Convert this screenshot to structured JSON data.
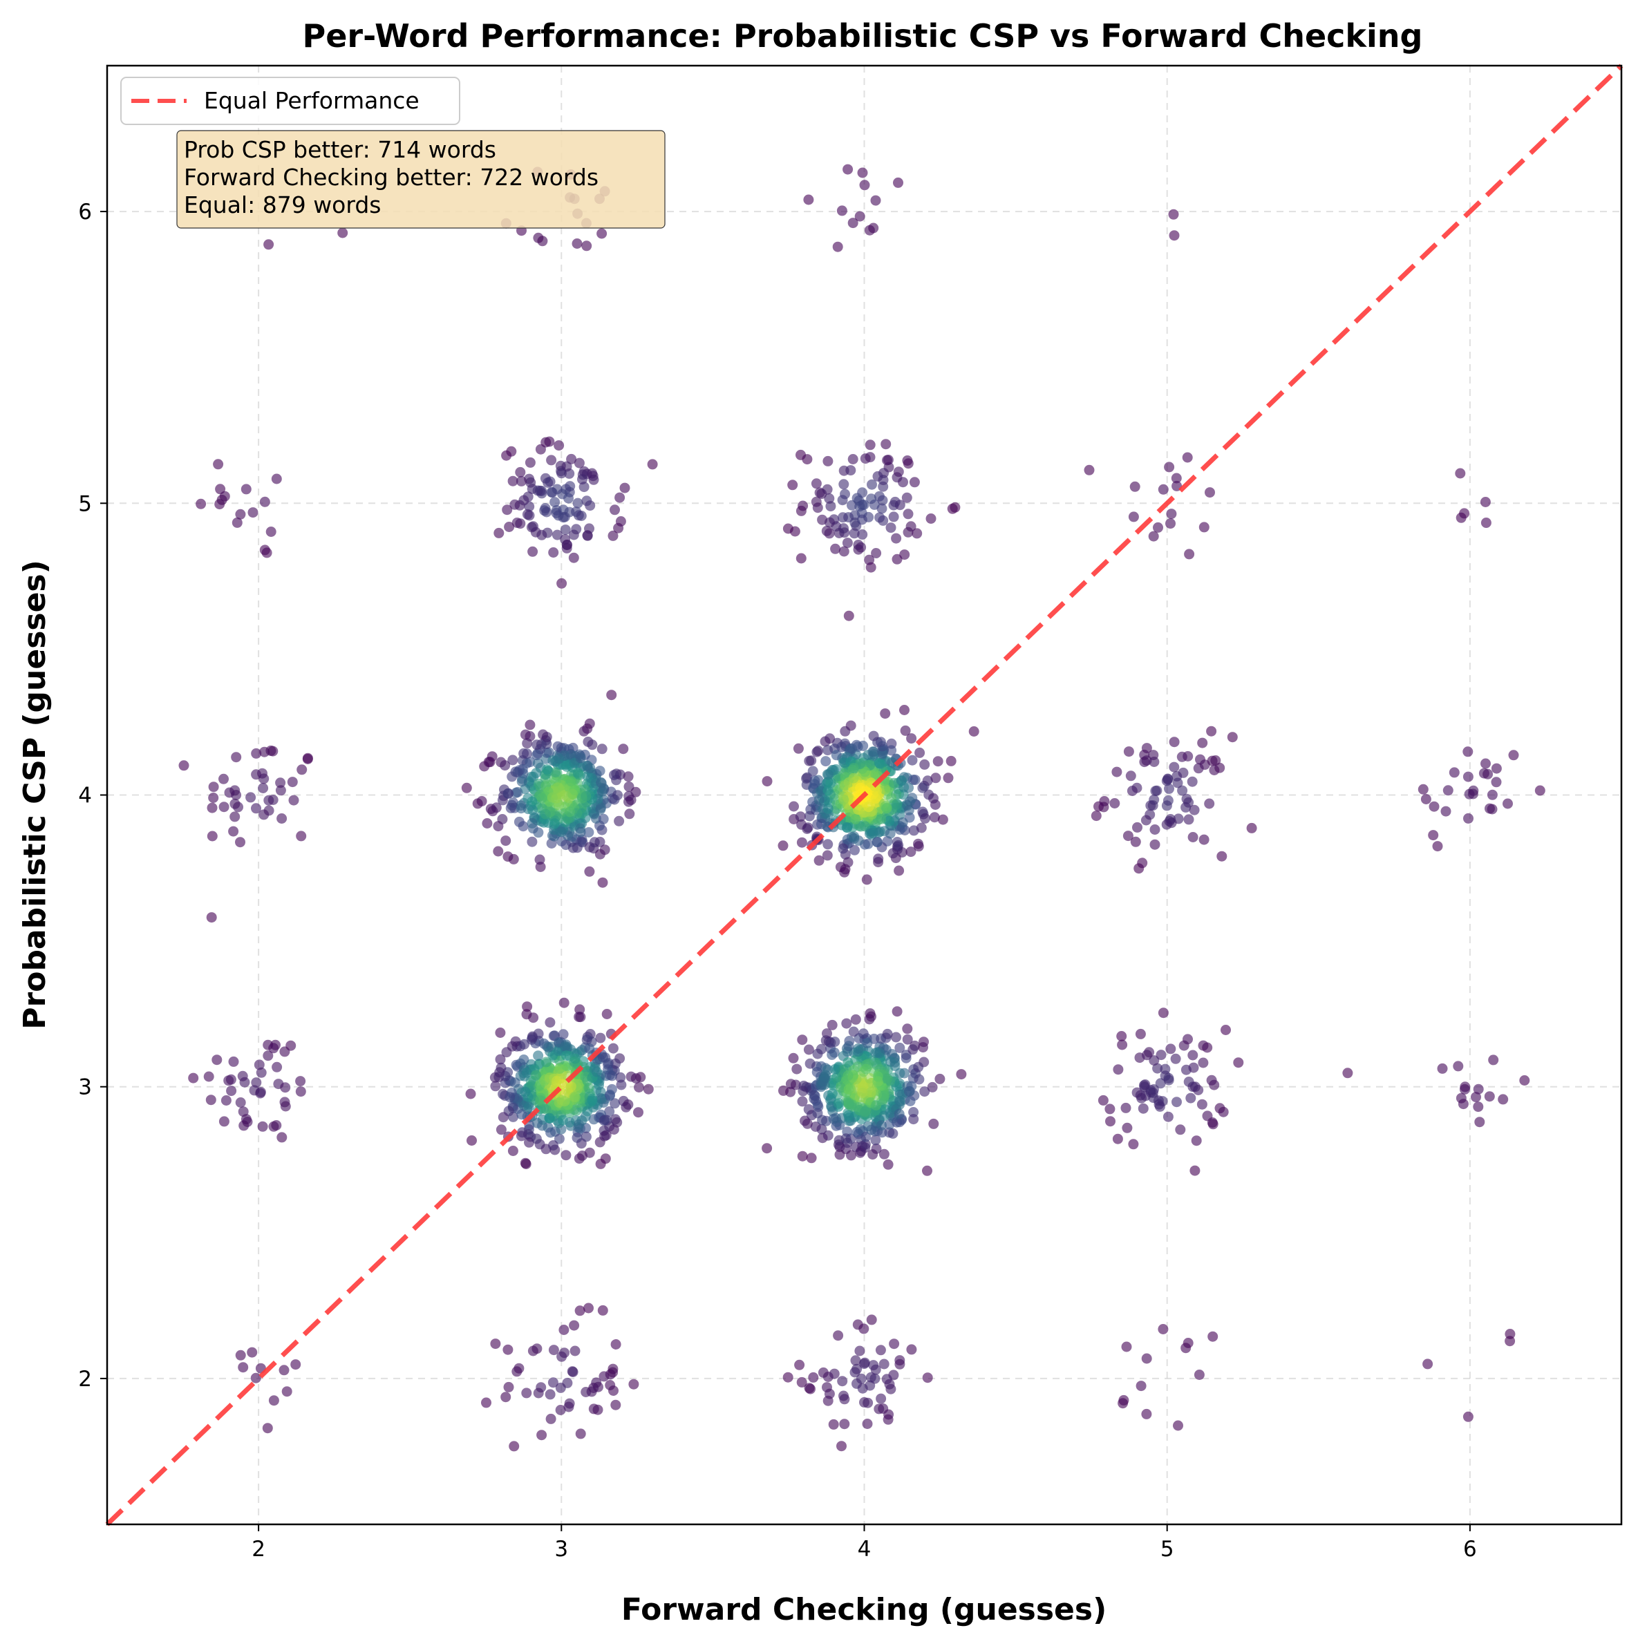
{
  "chart_data": {
    "type": "scatter",
    "title": "Per-Word Performance: Probabilistic CSP vs Forward Checking",
    "xlabel": "Forward Checking (guesses)",
    "ylabel": "Probabilistic CSP (guesses)",
    "xlim": [
      1.5,
      6.5
    ],
    "ylim": [
      1.5,
      6.5
    ],
    "xticks": [
      2,
      3,
      4,
      5,
      6
    ],
    "yticks": [
      2,
      3,
      4,
      5,
      6
    ],
    "grid": true,
    "jitter": 0.1,
    "colormap": "viridis",
    "point_alpha": 0.6,
    "reference_line": {
      "label": "Equal Performance",
      "from": [
        1.5,
        1.5
      ],
      "to": [
        6.5,
        6.5
      ],
      "color": "#ff3b3b",
      "style": "dashed"
    },
    "legend": {
      "position": "top-left",
      "entries": [
        "Equal Performance"
      ]
    },
    "annotation": {
      "lines": [
        "Prob CSP better: 714 words",
        "Forward Checking better: 722 words",
        "Equal: 879 words"
      ],
      "background": "#f5deb3"
    },
    "series": [
      {
        "name": "words",
        "description": "Word counts per (Forward Checking guesses, Probabilistic CSP guesses) cell, estimated from dot density",
        "cells": [
          {
            "x": 2,
            "y": 2,
            "count": 10
          },
          {
            "x": 2,
            "y": 3,
            "count": 40
          },
          {
            "x": 2,
            "y": 4,
            "count": 40
          },
          {
            "x": 2,
            "y": 5,
            "count": 15
          },
          {
            "x": 2,
            "y": 6,
            "count": 2
          },
          {
            "x": 3,
            "y": 2,
            "count": 50
          },
          {
            "x": 3,
            "y": 3,
            "count": 450
          },
          {
            "x": 3,
            "y": 4,
            "count": 400
          },
          {
            "x": 3,
            "y": 5,
            "count": 100
          },
          {
            "x": 3,
            "y": 6,
            "count": 15
          },
          {
            "x": 4,
            "y": 2,
            "count": 55
          },
          {
            "x": 4,
            "y": 3,
            "count": 420
          },
          {
            "x": 4,
            "y": 4,
            "count": 500
          },
          {
            "x": 4,
            "y": 5,
            "count": 100
          },
          {
            "x": 4,
            "y": 6,
            "count": 12
          },
          {
            "x": 5,
            "y": 2,
            "count": 12
          },
          {
            "x": 5,
            "y": 3,
            "count": 70
          },
          {
            "x": 5,
            "y": 4,
            "count": 70
          },
          {
            "x": 5,
            "y": 5,
            "count": 15
          },
          {
            "x": 5,
            "y": 6,
            "count": 2
          },
          {
            "x": 6,
            "y": 2,
            "count": 4
          },
          {
            "x": 6,
            "y": 3,
            "count": 15
          },
          {
            "x": 6,
            "y": 4,
            "count": 25
          },
          {
            "x": 6,
            "y": 5,
            "count": 5
          }
        ]
      }
    ]
  }
}
